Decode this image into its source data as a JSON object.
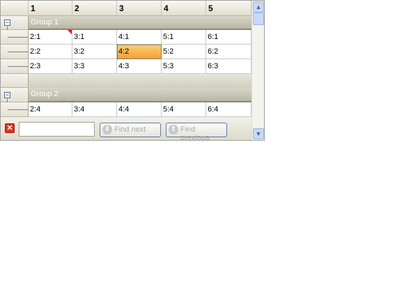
{
  "columns": [
    "1",
    "2",
    "3",
    "4",
    "5"
  ],
  "groups": [
    {
      "label": "Group 1",
      "rows": [
        [
          "2:1",
          "3:1",
          "4:1",
          "5:1",
          "6:1"
        ],
        [
          "2:2",
          "3:2",
          "4:2",
          "5:2",
          "6:2"
        ],
        [
          "2:3",
          "3:3",
          "4:3",
          "5:3",
          "6:3"
        ]
      ]
    },
    {
      "label": "Group 2",
      "rows": [
        [
          "2:4",
          "3:4",
          "4:4",
          "5:4",
          "6:4"
        ]
      ]
    }
  ],
  "selected_cell": "4:2",
  "find_panel": {
    "search_value": "",
    "find_next_label": "Find next",
    "find_previous_label": "Find previous"
  },
  "colors": {
    "selection": "#f5a030",
    "comment_marker": "#ff0000",
    "close": "#e03020"
  },
  "icons": {
    "close": "close-icon",
    "expand": "collapse-minus-icon",
    "next": "arrow-down-circle-icon",
    "prev": "arrow-up-circle-icon"
  }
}
